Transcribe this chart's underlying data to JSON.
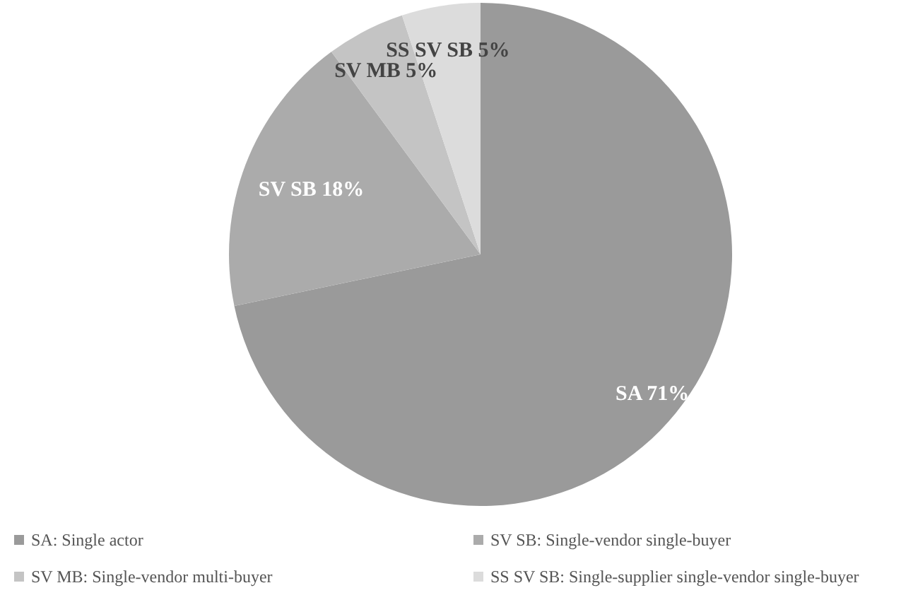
{
  "chart_data": {
    "type": "pie",
    "categories": [
      "SA: Single actor",
      "SV SB: Single-vendor single-buyer",
      "SV MB: Single-vendor multi-buyer",
      "SS SV SB: Single-supplier single-vendor single-buyer"
    ],
    "values": [
      71,
      18,
      5,
      5
    ],
    "value_labels": [
      "SA 71%",
      "SV SB 18%",
      "SV MB 5%",
      "SS SV SB 5%"
    ],
    "colors": [
      "#9a9a9a",
      "#ababab",
      "#c4c4c4",
      "#dcdcdc"
    ],
    "legend": "bottom"
  }
}
